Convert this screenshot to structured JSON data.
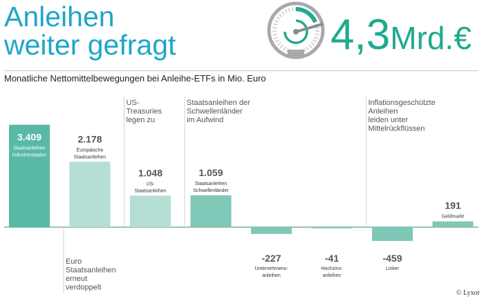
{
  "header": {
    "title_line1": "Anleihen",
    "title_line2": "weiter gefragt",
    "big_number": "4,3",
    "big_unit": "Mrd.€",
    "subtitle": "Monatliche Nettomittelbewegungen bei Anleihe-ETFs in Mio. Euro",
    "credit": "© Lyxor"
  },
  "colors": {
    "title_blue": "#1ea6c9",
    "accent_green": "#20a98f",
    "bar_dark": "#59b9a7",
    "bar_medium": "#7fc7b6",
    "bar_light": "#b5ded4",
    "bar_negative": "#7fc7b6",
    "axis": "#5b9e92"
  },
  "chart_data": {
    "type": "bar",
    "unit": "Mio. Euro",
    "bars": [
      {
        "value": 3409,
        "value_label": "3.409",
        "category": [
          "Staatsanleihen",
          "Industriestaaten"
        ],
        "style": "dark",
        "label_inside": true
      },
      {
        "value": 2178,
        "value_label": "2.178",
        "category": [
          "Europäische",
          "Staatsanleihen"
        ],
        "style": "light"
      },
      {
        "value": 1048,
        "value_label": "1.048",
        "category": [
          "US-",
          "Staatsanleihen"
        ],
        "style": "light"
      },
      {
        "value": 1059,
        "value_label": "1.059",
        "category": [
          "Staatsanleihen",
          "Schwellenländer"
        ],
        "style": "medium"
      },
      {
        "value": -227,
        "value_label": "-227",
        "category": [
          "Unternehmens-",
          "anleihen"
        ],
        "style": "medium"
      },
      {
        "value": -41,
        "value_label": "-41",
        "category": [
          "Hochzins-",
          "anleihen"
        ],
        "style": "medium"
      },
      {
        "value": -459,
        "value_label": "-459",
        "category": [
          "Linker"
        ],
        "style": "medium"
      },
      {
        "value": 191,
        "value_label": "191",
        "category": [
          "Geldmarkt"
        ],
        "style": "medium"
      }
    ],
    "annotations": [
      {
        "bar": 1,
        "lines": [
          "Euro",
          "Staatsanleihen",
          "erneut",
          "verdoppelt"
        ],
        "side": "below"
      },
      {
        "bar": 2,
        "lines": [
          "US-",
          "Treasuries",
          "legen zu"
        ],
        "side": "above"
      },
      {
        "bar": 3,
        "lines": [
          "Staatsanleihen der",
          "Schwellenländer",
          "im Aufwind"
        ],
        "side": "above"
      },
      {
        "bar": 6,
        "lines": [
          "Inflationsgeschützte",
          "Anleihen",
          "leiden unter",
          "Mittelrückflüssen"
        ],
        "side": "above"
      }
    ]
  }
}
